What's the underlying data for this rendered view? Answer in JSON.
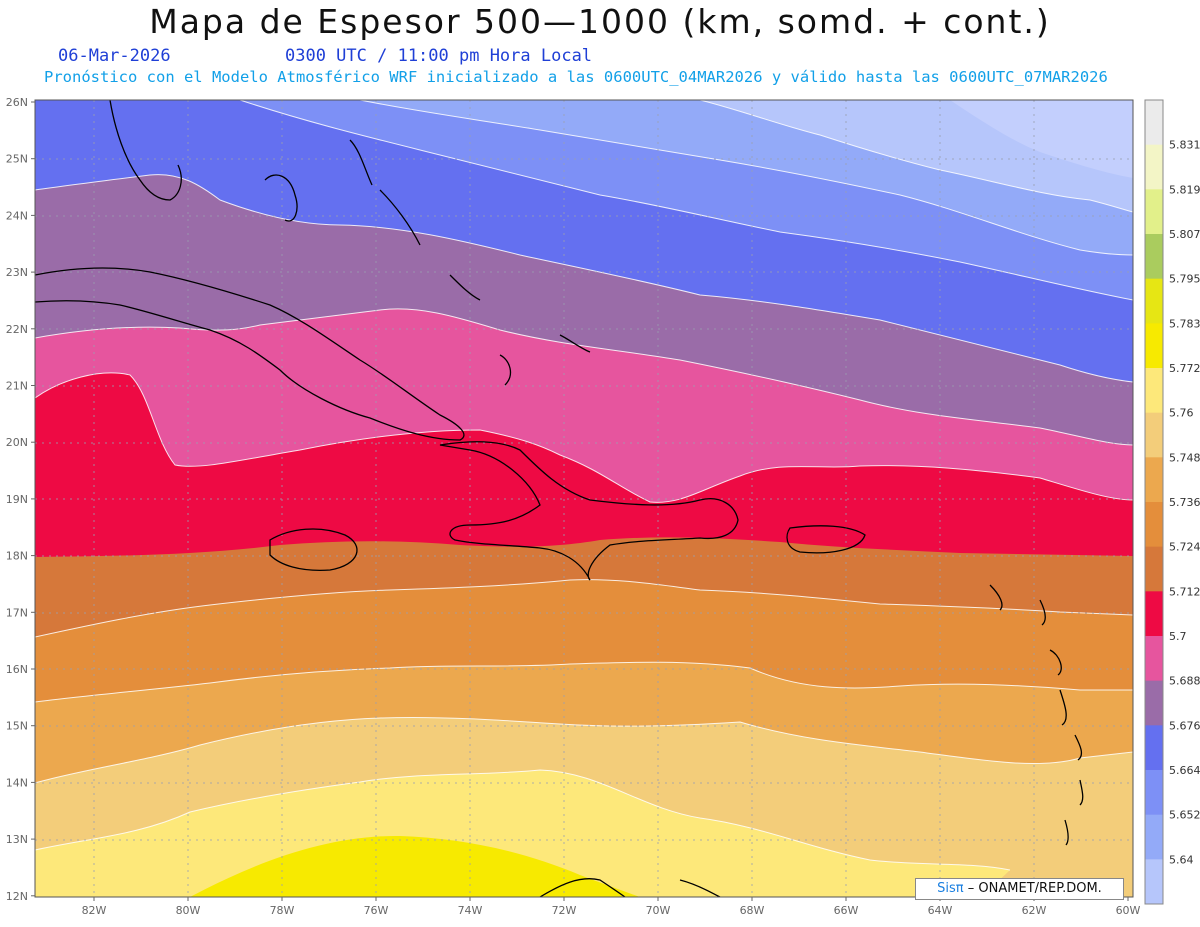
{
  "title": "Mapa de Espesor 500—1000 (km, somd. + cont.)",
  "date": "06-Mar-2026",
  "time": "0300 UTC / 11:00 pm Hora Local",
  "forecast_text": "Pronóstico con el Modelo Atmosférico WRF inicializado a las 0600UTC_04MAR2026 y válido hasta las  0600UTC_07MAR2026",
  "credit": {
    "brand": "Sisπ",
    "org": "– ONAMET/REP.DOM."
  },
  "lat_labels": [
    "26N",
    "25N",
    "24N",
    "23N",
    "22N",
    "21N",
    "20N",
    "19N",
    "18N",
    "17N",
    "16N",
    "15N",
    "14N",
    "13N",
    "12N"
  ],
  "lon_labels": [
    "82W",
    "80W",
    "78W",
    "76W",
    "74W",
    "72W",
    "70W",
    "68W",
    "66W",
    "64W",
    "62W",
    "60W"
  ],
  "colorbar": {
    "labels": [
      "5.831",
      "5.819",
      "5.807",
      "5.795",
      "5.783",
      "5.772",
      "5.76",
      "5.748",
      "5.736",
      "5.724",
      "5.712",
      "5.7",
      "5.688",
      "5.676",
      "5.664",
      "5.652",
      "5.64"
    ],
    "colors_top_to_bottom": [
      "#ebebeb",
      "#f3f5c6",
      "#e2f08a",
      "#aacc5e",
      "#e6e614",
      "#f7ea00",
      "#fde87a",
      "#f3cd7a",
      "#eca84e",
      "#e48e3b",
      "#d6783a",
      "#ee0a44",
      "#e6559e",
      "#9a6ca8",
      "#6470f0",
      "#7d90f6",
      "#93aaf8",
      "#b6c6fb"
    ]
  },
  "colors": {
    "band_yellow": "#f7ea00",
    "band_light_yellow": "#fde87a",
    "band_tan": "#f3cd7a",
    "band_light_orange": "#eca84e",
    "band_orange": "#e48e3b",
    "band_dark_orange": "#d6783a",
    "band_red": "#ee0a44",
    "band_pink": "#e6559e",
    "band_purple": "#9a6ca8",
    "band_blue": "#6470f0",
    "band_mid_blue": "#7d90f6",
    "band_light_blue": "#93aaf8",
    "band_pale_blue": "#b6c6fb"
  }
}
